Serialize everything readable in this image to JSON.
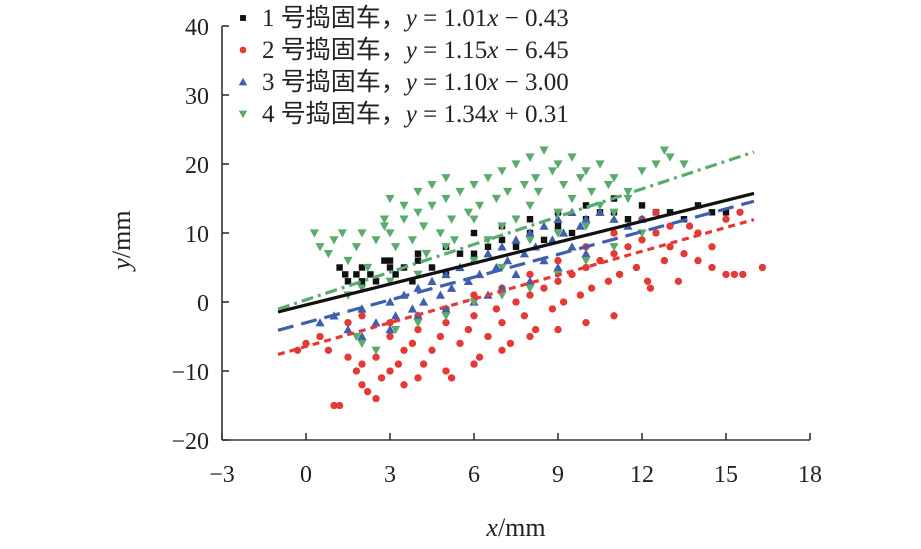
{
  "chart_data": {
    "type": "scatter",
    "title": "",
    "xlabel": {
      "var": "x",
      "unit": "/mm"
    },
    "ylabel": {
      "var": "y",
      "unit": "/mm"
    },
    "xlim": [
      -3,
      18
    ],
    "ylim": [
      -20,
      40
    ],
    "xticks": [
      -3,
      0,
      3,
      6,
      9,
      12,
      15,
      18
    ],
    "yticks": [
      -20,
      -10,
      0,
      10,
      20,
      30,
      40
    ],
    "x_tick_labels": [
      "−3",
      "0",
      "3",
      "6",
      "9",
      "12",
      "15",
      "18"
    ],
    "y_tick_labels": [
      "−20",
      "−10",
      "0",
      "10",
      "20",
      "30",
      "40"
    ],
    "grid": false,
    "legend_position": "top",
    "series": [
      {
        "name": "1 号捣固车，y = 1.01x − 0.43",
        "legend_num": "1",
        "legend_label": "号捣固车，",
        "legend_eq_var": "y",
        "legend_eq_rest": " = 1.01",
        "legend_eq_x": "x",
        "legend_eq_tail": " − 0.43",
        "color": "#111111",
        "marker": "square",
        "line_style": "solid",
        "fit": {
          "slope": 1.01,
          "intercept": -0.43,
          "x_range": [
            -1,
            16
          ]
        },
        "points": [
          [
            1.2,
            5
          ],
          [
            1.4,
            4
          ],
          [
            1.5,
            3
          ],
          [
            1.8,
            4
          ],
          [
            2,
            3
          ],
          [
            2,
            5
          ],
          [
            2.3,
            4
          ],
          [
            2.5,
            3
          ],
          [
            2.8,
            6
          ],
          [
            3,
            5
          ],
          [
            3.2,
            4
          ],
          [
            3.5,
            5
          ],
          [
            3.8,
            3
          ],
          [
            4,
            6
          ],
          [
            4.5,
            5
          ],
          [
            5,
            4
          ],
          [
            5.5,
            7
          ],
          [
            6,
            7
          ],
          [
            6.5,
            8
          ],
          [
            7,
            9
          ],
          [
            7.5,
            8
          ],
          [
            8,
            10
          ],
          [
            8.5,
            9
          ],
          [
            9,
            11
          ],
          [
            9.5,
            10
          ],
          [
            10,
            12
          ],
          [
            10.5,
            13
          ],
          [
            11,
            13
          ],
          [
            11.5,
            12
          ],
          [
            12,
            14
          ],
          [
            12.5,
            13
          ],
          [
            13,
            13
          ],
          [
            13.5,
            12
          ],
          [
            14,
            14
          ],
          [
            14.5,
            13
          ],
          [
            15,
            13
          ],
          [
            11,
            15
          ],
          [
            10,
            14
          ],
          [
            9,
            13
          ],
          [
            8,
            12
          ],
          [
            7,
            11
          ],
          [
            6,
            10
          ],
          [
            5,
            8
          ],
          [
            4,
            7
          ],
          [
            3,
            6
          ]
        ]
      },
      {
        "name": "2 号捣固车，y = 1.15x − 6.45",
        "legend_num": "2",
        "legend_label": "号捣固车，",
        "legend_eq_var": "y",
        "legend_eq_rest": " = 1.15",
        "legend_eq_x": "x",
        "legend_eq_tail": " − 6.45",
        "color": "#e53935",
        "marker": "circle",
        "line_style": "short-dash",
        "fit": {
          "slope": 1.15,
          "intercept": -6.45,
          "x_range": [
            -1,
            16
          ]
        },
        "points": [
          [
            -0.3,
            -7
          ],
          [
            0,
            -6
          ],
          [
            0.5,
            -5
          ],
          [
            0.8,
            -7
          ],
          [
            1,
            -15
          ],
          [
            1.2,
            -15
          ],
          [
            1.5,
            -8
          ],
          [
            1.8,
            -10
          ],
          [
            2,
            -12
          ],
          [
            2.2,
            -13
          ],
          [
            2.5,
            -14
          ],
          [
            2.7,
            -11
          ],
          [
            3,
            -10
          ],
          [
            3,
            -5
          ],
          [
            3.3,
            -9
          ],
          [
            3.5,
            -7
          ],
          [
            3.8,
            -6
          ],
          [
            4,
            -4
          ],
          [
            4.2,
            -9
          ],
          [
            4.5,
            -7
          ],
          [
            4.8,
            -5
          ],
          [
            5,
            -3
          ],
          [
            5.2,
            -11
          ],
          [
            5.5,
            -6
          ],
          [
            5.8,
            -4
          ],
          [
            6,
            -2
          ],
          [
            6.2,
            -8
          ],
          [
            6.5,
            -5
          ],
          [
            6.8,
            -1
          ],
          [
            7,
            -3
          ],
          [
            7.3,
            -6
          ],
          [
            7.5,
            0
          ],
          [
            7.8,
            -2
          ],
          [
            8,
            1
          ],
          [
            8.2,
            -4
          ],
          [
            8.5,
            2
          ],
          [
            8.8,
            -1
          ],
          [
            9,
            3
          ],
          [
            9.2,
            0
          ],
          [
            9.5,
            4
          ],
          [
            9.8,
            1
          ],
          [
            10,
            5
          ],
          [
            10.2,
            2
          ],
          [
            10.5,
            6
          ],
          [
            10.8,
            3
          ],
          [
            11,
            7
          ],
          [
            11.2,
            4
          ],
          [
            11.5,
            8
          ],
          [
            11.8,
            5
          ],
          [
            12,
            9
          ],
          [
            12.2,
            3
          ],
          [
            12.5,
            10
          ],
          [
            12.8,
            6
          ],
          [
            13,
            8
          ],
          [
            13.5,
            7
          ],
          [
            14,
            6
          ],
          [
            14.5,
            5
          ],
          [
            15,
            4
          ],
          [
            15.3,
            4
          ],
          [
            15.6,
            4
          ],
          [
            16.3,
            5
          ],
          [
            13.3,
            3
          ],
          [
            12.3,
            2
          ],
          [
            11,
            -2
          ],
          [
            10,
            -3
          ],
          [
            9,
            -4
          ],
          [
            8,
            -5
          ],
          [
            7,
            -7
          ],
          [
            6,
            -9
          ],
          [
            5,
            -10
          ],
          [
            4,
            -11
          ],
          [
            3.5,
            -12
          ],
          [
            2.5,
            -8
          ],
          [
            2,
            -9
          ],
          [
            1.5,
            -3
          ],
          [
            2,
            -2
          ],
          [
            3,
            -3
          ],
          [
            4,
            -2
          ],
          [
            5,
            -1
          ],
          [
            6,
            1
          ],
          [
            7,
            2
          ],
          [
            8,
            4
          ],
          [
            9,
            6
          ],
          [
            10,
            8
          ],
          [
            11,
            10
          ],
          [
            12,
            12
          ],
          [
            12.5,
            13
          ],
          [
            13,
            11
          ],
          [
            14,
            10
          ],
          [
            15,
            12
          ],
          [
            15.5,
            13
          ],
          [
            13.7,
            11
          ],
          [
            14.5,
            8
          ]
        ]
      },
      {
        "name": "3 号捣固车，y = 1.10x − 3.00",
        "legend_num": "3",
        "legend_label": "号捣固车，",
        "legend_eq_var": "y",
        "legend_eq_rest": " = 1.10",
        "legend_eq_x": "x",
        "legend_eq_tail": " − 3.00",
        "color": "#3f5fad",
        "marker": "triangle-up",
        "line_style": "long-dash",
        "fit": {
          "slope": 1.1,
          "intercept": -3.0,
          "x_range": [
            -1,
            16
          ]
        },
        "points": [
          [
            0.5,
            -3
          ],
          [
            1,
            -2
          ],
          [
            1.5,
            -4
          ],
          [
            2,
            -1
          ],
          [
            2.5,
            -3
          ],
          [
            3,
            0
          ],
          [
            3.2,
            -2
          ],
          [
            3.5,
            1
          ],
          [
            3.8,
            -1
          ],
          [
            4,
            2
          ],
          [
            4.2,
            0
          ],
          [
            4.5,
            3
          ],
          [
            4.8,
            1
          ],
          [
            5,
            4
          ],
          [
            5.2,
            2
          ],
          [
            5.5,
            5
          ],
          [
            5.8,
            3
          ],
          [
            6,
            6
          ],
          [
            6.2,
            4
          ],
          [
            6.5,
            7
          ],
          [
            6.8,
            5
          ],
          [
            7,
            8
          ],
          [
            7.2,
            6
          ],
          [
            7.5,
            9
          ],
          [
            7.8,
            7
          ],
          [
            8,
            10
          ],
          [
            8.2,
            8
          ],
          [
            8.5,
            11
          ],
          [
            8.8,
            9
          ],
          [
            9,
            12
          ],
          [
            9.2,
            10
          ],
          [
            9.5,
            13
          ],
          [
            9.8,
            11
          ],
          [
            10,
            12
          ],
          [
            10.5,
            13
          ],
          [
            11,
            12
          ],
          [
            11.5,
            11
          ],
          [
            12,
            12
          ],
          [
            5,
            -1
          ],
          [
            6,
            0
          ],
          [
            7,
            2
          ],
          [
            8,
            3
          ],
          [
            9,
            5
          ],
          [
            10,
            7
          ],
          [
            4,
            -2
          ],
          [
            3,
            -4
          ],
          [
            2,
            -5
          ],
          [
            6.5,
            1
          ],
          [
            7.5,
            4
          ],
          [
            8.5,
            6
          ],
          [
            9.5,
            8
          ]
        ]
      },
      {
        "name": "4 号捣固车，y = 1.34x + 0.31",
        "legend_num": "4",
        "legend_label": "号捣固车，",
        "legend_eq_var": "y",
        "legend_eq_rest": " = 1.34",
        "legend_eq_x": "x",
        "legend_eq_tail": " + 0.31",
        "color": "#5aab6e",
        "marker": "triangle-down",
        "line_style": "dash-dot",
        "fit": {
          "slope": 1.34,
          "intercept": 0.31,
          "x_range": [
            -1,
            16
          ]
        },
        "points": [
          [
            0.3,
            10
          ],
          [
            0.5,
            8
          ],
          [
            0.8,
            7
          ],
          [
            1,
            9
          ],
          [
            1.3,
            10
          ],
          [
            1.5,
            6
          ],
          [
            1.8,
            8
          ],
          [
            2,
            10
          ],
          [
            2.2,
            5
          ],
          [
            2.5,
            9
          ],
          [
            2.8,
            11
          ],
          [
            3,
            10
          ],
          [
            3.2,
            8
          ],
          [
            3.5,
            12
          ],
          [
            3.8,
            9
          ],
          [
            4,
            13
          ],
          [
            4.2,
            11
          ],
          [
            4.5,
            14
          ],
          [
            4.8,
            10
          ],
          [
            5,
            15
          ],
          [
            5.2,
            12
          ],
          [
            5.5,
            16
          ],
          [
            5.8,
            13
          ],
          [
            6,
            17
          ],
          [
            6.2,
            14
          ],
          [
            6.5,
            18
          ],
          [
            6.8,
            15
          ],
          [
            7,
            19
          ],
          [
            7.2,
            16
          ],
          [
            7.5,
            20
          ],
          [
            7.8,
            17
          ],
          [
            8,
            21
          ],
          [
            8.2,
            18
          ],
          [
            8.5,
            22
          ],
          [
            8.8,
            19
          ],
          [
            9,
            20
          ],
          [
            9.2,
            17
          ],
          [
            9.5,
            21
          ],
          [
            9.8,
            18
          ],
          [
            10,
            19
          ],
          [
            10.2,
            16
          ],
          [
            10.5,
            20
          ],
          [
            10.8,
            17
          ],
          [
            11,
            18
          ],
          [
            11.5,
            16
          ],
          [
            12,
            19
          ],
          [
            12.5,
            20
          ],
          [
            13,
            21
          ],
          [
            13.5,
            20
          ],
          [
            12.8,
            22
          ],
          [
            4,
            16
          ],
          [
            4.5,
            17
          ],
          [
            5,
            18
          ],
          [
            3,
            15
          ],
          [
            3.5,
            14
          ],
          [
            6,
            12
          ],
          [
            7,
            11
          ],
          [
            8,
            14
          ],
          [
            9,
            13
          ],
          [
            5,
            8
          ],
          [
            6,
            6
          ],
          [
            7,
            5
          ],
          [
            8,
            9
          ],
          [
            9,
            10
          ],
          [
            10,
            11
          ],
          [
            11,
            13
          ],
          [
            4,
            4
          ],
          [
            3,
            3
          ],
          [
            2,
            -6
          ],
          [
            2.5,
            -7
          ],
          [
            1.8,
            -5
          ],
          [
            3.2,
            -4
          ],
          [
            4,
            -3
          ],
          [
            5,
            -2
          ],
          [
            6,
            0
          ],
          [
            7,
            1
          ],
          [
            8,
            2
          ],
          [
            9,
            4
          ],
          [
            10,
            6
          ],
          [
            11,
            8
          ],
          [
            12,
            10
          ],
          [
            2,
            2
          ],
          [
            1.5,
            1
          ],
          [
            2.8,
            12
          ],
          [
            6.5,
            9
          ],
          [
            7.5,
            12
          ],
          [
            9.5,
            15
          ],
          [
            10.5,
            14
          ],
          [
            11.5,
            15
          ],
          [
            8.3,
            16
          ],
          [
            5.3,
            9
          ],
          [
            4.3,
            7
          ]
        ]
      }
    ]
  }
}
